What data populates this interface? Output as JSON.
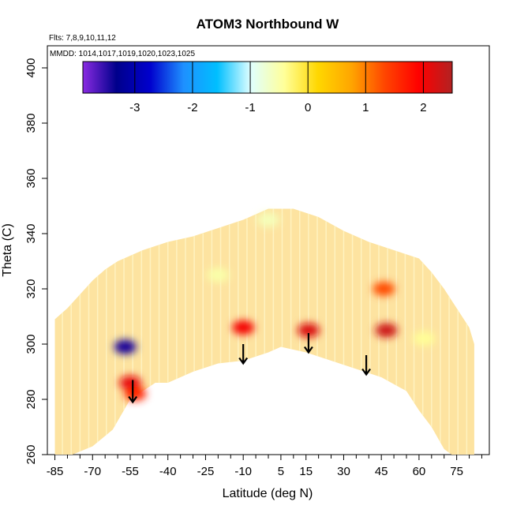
{
  "chart_data": {
    "type": "heatmap",
    "title": "ATOM3 Northbound W",
    "flights_label": "Flts: 7,8,9,10,11,12",
    "dates_label": "MMDD: 1014,1017,1019,1020,1023,1025",
    "xlabel": "Latitude (deg N)",
    "ylabel": "Theta (C)",
    "xlim": [
      -88,
      88
    ],
    "ylim": [
      260,
      408
    ],
    "x_ticks": [
      -85,
      -70,
      -55,
      -40,
      -25,
      -10,
      5,
      15,
      30,
      45,
      60,
      75
    ],
    "y_ticks": [
      260,
      280,
      300,
      320,
      340,
      360,
      380,
      400
    ],
    "colorbar": {
      "range": [
        -3.9,
        2.5
      ],
      "ticks": [
        -3,
        -2,
        -1,
        0,
        1,
        2
      ],
      "stops": [
        "#8a2be2",
        "#00008b",
        "#0000cd",
        "#1e90ff",
        "#00bfff",
        "#e0ffff",
        "#ffff99",
        "#ffd700",
        "#ffa500",
        "#ff4500",
        "#ff0000",
        "#b22222"
      ]
    },
    "upper_boundary": [
      [
        -85,
        309
      ],
      [
        -80,
        313
      ],
      [
        -75,
        318
      ],
      [
        -70,
        323
      ],
      [
        -65,
        327
      ],
      [
        -60,
        330
      ],
      [
        -50,
        334
      ],
      [
        -40,
        337
      ],
      [
        -30,
        339
      ],
      [
        -20,
        342
      ],
      [
        -10,
        345
      ],
      [
        0,
        349
      ],
      [
        10,
        349
      ],
      [
        20,
        346
      ],
      [
        30,
        341
      ],
      [
        40,
        337
      ],
      [
        50,
        334
      ],
      [
        60,
        331
      ],
      [
        65,
        326
      ],
      [
        70,
        320
      ],
      [
        75,
        313
      ],
      [
        80,
        306
      ],
      [
        82,
        300
      ]
    ],
    "lower_boundary": [
      [
        -85,
        260
      ],
      [
        -78,
        260
      ],
      [
        -70,
        263
      ],
      [
        -62,
        269
      ],
      [
        -55,
        280
      ],
      [
        -50,
        283
      ],
      [
        -45,
        286
      ],
      [
        -40,
        286
      ],
      [
        -30,
        290
      ],
      [
        -20,
        293
      ],
      [
        -10,
        294
      ],
      [
        0,
        297
      ],
      [
        5,
        299
      ],
      [
        15,
        297
      ],
      [
        25,
        294
      ],
      [
        35,
        291
      ],
      [
        45,
        288
      ],
      [
        55,
        283
      ],
      [
        60,
        276
      ],
      [
        65,
        270
      ],
      [
        70,
        262
      ],
      [
        73,
        260
      ],
      [
        82,
        260
      ]
    ],
    "anomalies": [
      {
        "lat": -55,
        "theta": 286,
        "value": 2.1
      },
      {
        "lat": -53,
        "theta": 282,
        "value": 1.6
      },
      {
        "lat": -10,
        "theta": 306,
        "value": 2.0
      },
      {
        "lat": 16,
        "theta": 305,
        "value": 2.2
      },
      {
        "lat": 47,
        "theta": 305,
        "value": 2.3
      },
      {
        "lat": 46,
        "theta": 320,
        "value": 1.3
      },
      {
        "lat": -57,
        "theta": 299,
        "value": -3.4
      },
      {
        "lat": -20,
        "theta": 325,
        "value": -0.5
      },
      {
        "lat": 0,
        "theta": 345,
        "value": -0.6
      },
      {
        "lat": 62,
        "theta": 302,
        "value": -0.4
      }
    ],
    "arrows": [
      {
        "lat": -54,
        "theta_start": 287,
        "theta_end": 279
      },
      {
        "lat": -10,
        "theta_start": 300,
        "theta_end": 293
      },
      {
        "lat": 16,
        "theta_start": 304,
        "theta_end": 297
      },
      {
        "lat": 39,
        "theta_start": 296,
        "theta_end": 289
      }
    ]
  }
}
